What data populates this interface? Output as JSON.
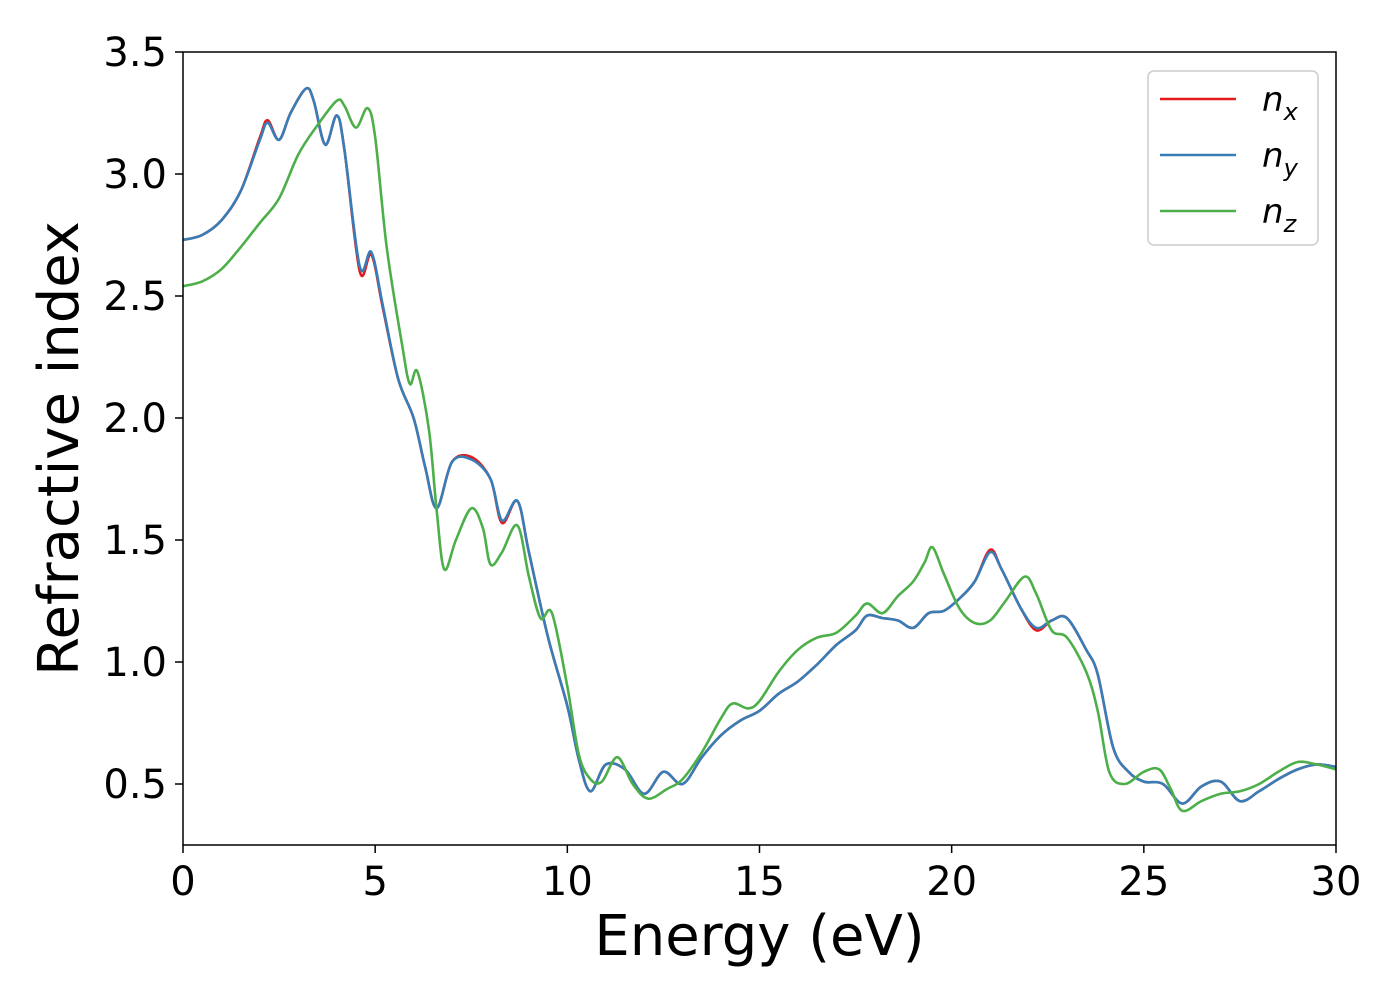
{
  "chart_data": {
    "type": "line",
    "xlabel": "Energy (eV)",
    "ylabel": "Refractive index",
    "xlim": [
      0,
      30
    ],
    "ylim": [
      0.25,
      3.5
    ],
    "xticks": [
      "0",
      "5",
      "10",
      "15",
      "20",
      "25",
      "30"
    ],
    "yticks": [
      "0.5",
      "1.0",
      "1.5",
      "2.0",
      "2.5",
      "3.0",
      "3.5"
    ],
    "grid": false,
    "legend_position": "top-right",
    "series": [
      {
        "name": "n",
        "subscript": "x",
        "color": "#e41a1c",
        "points": [
          [
            0,
            2.73
          ],
          [
            0.5,
            2.75
          ],
          [
            1,
            2.81
          ],
          [
            1.5,
            2.93
          ],
          [
            2,
            3.15
          ],
          [
            2.2,
            3.22
          ],
          [
            2.5,
            3.14
          ],
          [
            2.8,
            3.25
          ],
          [
            3.2,
            3.35
          ],
          [
            3.4,
            3.3
          ],
          [
            3.7,
            3.12
          ],
          [
            4.0,
            3.24
          ],
          [
            4.2,
            3.1
          ],
          [
            4.6,
            2.6
          ],
          [
            4.9,
            2.67
          ],
          [
            5.2,
            2.45
          ],
          [
            5.6,
            2.16
          ],
          [
            6.0,
            2.0
          ],
          [
            6.3,
            1.8
          ],
          [
            6.6,
            1.63
          ],
          [
            7.0,
            1.82
          ],
          [
            7.5,
            1.84
          ],
          [
            8.0,
            1.75
          ],
          [
            8.3,
            1.57
          ],
          [
            8.7,
            1.66
          ],
          [
            9.0,
            1.45
          ],
          [
            9.5,
            1.1
          ],
          [
            10.0,
            0.82
          ],
          [
            10.3,
            0.6
          ],
          [
            10.6,
            0.47
          ],
          [
            11.0,
            0.58
          ],
          [
            11.5,
            0.56
          ],
          [
            12.0,
            0.46
          ],
          [
            12.5,
            0.55
          ],
          [
            13.0,
            0.5
          ],
          [
            13.5,
            0.61
          ],
          [
            14.0,
            0.7
          ],
          [
            14.5,
            0.76
          ],
          [
            15.0,
            0.8
          ],
          [
            15.5,
            0.87
          ],
          [
            16.0,
            0.92
          ],
          [
            16.5,
            0.99
          ],
          [
            17.0,
            1.07
          ],
          [
            17.5,
            1.13
          ],
          [
            17.8,
            1.19
          ],
          [
            18.2,
            1.18
          ],
          [
            18.6,
            1.17
          ],
          [
            19.0,
            1.14
          ],
          [
            19.4,
            1.2
          ],
          [
            19.8,
            1.21
          ],
          [
            20.2,
            1.26
          ],
          [
            20.6,
            1.33
          ],
          [
            21.0,
            1.46
          ],
          [
            21.3,
            1.38
          ],
          [
            21.8,
            1.22
          ],
          [
            22.2,
            1.13
          ],
          [
            22.6,
            1.17
          ],
          [
            23.0,
            1.18
          ],
          [
            23.5,
            1.05
          ],
          [
            23.8,
            0.95
          ],
          [
            24.2,
            0.65
          ],
          [
            24.6,
            0.55
          ],
          [
            25.0,
            0.51
          ],
          [
            25.5,
            0.5
          ],
          [
            26.0,
            0.42
          ],
          [
            26.5,
            0.49
          ],
          [
            27.0,
            0.51
          ],
          [
            27.5,
            0.43
          ],
          [
            28.0,
            0.47
          ],
          [
            28.5,
            0.52
          ],
          [
            29.0,
            0.56
          ],
          [
            29.5,
            0.58
          ],
          [
            30.0,
            0.57
          ]
        ]
      },
      {
        "name": "n",
        "subscript": "y",
        "color": "#377eb8",
        "points": [
          [
            0,
            2.73
          ],
          [
            0.5,
            2.75
          ],
          [
            1,
            2.81
          ],
          [
            1.5,
            2.93
          ],
          [
            2,
            3.14
          ],
          [
            2.2,
            3.21
          ],
          [
            2.5,
            3.14
          ],
          [
            2.8,
            3.25
          ],
          [
            3.2,
            3.35
          ],
          [
            3.4,
            3.3
          ],
          [
            3.7,
            3.12
          ],
          [
            4.0,
            3.24
          ],
          [
            4.2,
            3.1
          ],
          [
            4.6,
            2.62
          ],
          [
            4.9,
            2.68
          ],
          [
            5.2,
            2.46
          ],
          [
            5.6,
            2.16
          ],
          [
            6.0,
            2.0
          ],
          [
            6.3,
            1.8
          ],
          [
            6.6,
            1.63
          ],
          [
            7.0,
            1.82
          ],
          [
            7.5,
            1.83
          ],
          [
            8.0,
            1.75
          ],
          [
            8.3,
            1.58
          ],
          [
            8.7,
            1.66
          ],
          [
            9.0,
            1.45
          ],
          [
            9.5,
            1.1
          ],
          [
            10.0,
            0.82
          ],
          [
            10.3,
            0.6
          ],
          [
            10.6,
            0.47
          ],
          [
            11.0,
            0.58
          ],
          [
            11.5,
            0.56
          ],
          [
            12.0,
            0.46
          ],
          [
            12.5,
            0.55
          ],
          [
            13.0,
            0.5
          ],
          [
            13.5,
            0.61
          ],
          [
            14.0,
            0.7
          ],
          [
            14.5,
            0.76
          ],
          [
            15.0,
            0.8
          ],
          [
            15.5,
            0.87
          ],
          [
            16.0,
            0.92
          ],
          [
            16.5,
            0.99
          ],
          [
            17.0,
            1.07
          ],
          [
            17.5,
            1.13
          ],
          [
            17.8,
            1.19
          ],
          [
            18.2,
            1.18
          ],
          [
            18.6,
            1.17
          ],
          [
            19.0,
            1.14
          ],
          [
            19.4,
            1.2
          ],
          [
            19.8,
            1.21
          ],
          [
            20.2,
            1.26
          ],
          [
            20.6,
            1.33
          ],
          [
            21.0,
            1.45
          ],
          [
            21.3,
            1.38
          ],
          [
            21.8,
            1.22
          ],
          [
            22.2,
            1.14
          ],
          [
            22.6,
            1.17
          ],
          [
            23.0,
            1.18
          ],
          [
            23.5,
            1.05
          ],
          [
            23.8,
            0.95
          ],
          [
            24.2,
            0.65
          ],
          [
            24.6,
            0.55
          ],
          [
            25.0,
            0.51
          ],
          [
            25.5,
            0.5
          ],
          [
            26.0,
            0.42
          ],
          [
            26.5,
            0.49
          ],
          [
            27.0,
            0.51
          ],
          [
            27.5,
            0.43
          ],
          [
            28.0,
            0.47
          ],
          [
            28.5,
            0.52
          ],
          [
            29.0,
            0.56
          ],
          [
            29.5,
            0.58
          ],
          [
            30.0,
            0.57
          ]
        ]
      },
      {
        "name": "n",
        "subscript": "z",
        "color": "#4daf4a",
        "points": [
          [
            0,
            2.54
          ],
          [
            0.5,
            2.56
          ],
          [
            1,
            2.61
          ],
          [
            1.5,
            2.7
          ],
          [
            2,
            2.8
          ],
          [
            2.5,
            2.9
          ],
          [
            3.0,
            3.08
          ],
          [
            3.5,
            3.2
          ],
          [
            4.0,
            3.3
          ],
          [
            4.2,
            3.28
          ],
          [
            4.5,
            3.19
          ],
          [
            4.8,
            3.27
          ],
          [
            5.0,
            3.15
          ],
          [
            5.3,
            2.7
          ],
          [
            5.7,
            2.3
          ],
          [
            5.9,
            2.14
          ],
          [
            6.1,
            2.19
          ],
          [
            6.4,
            1.95
          ],
          [
            6.6,
            1.62
          ],
          [
            6.8,
            1.38
          ],
          [
            7.1,
            1.5
          ],
          [
            7.5,
            1.63
          ],
          [
            7.8,
            1.55
          ],
          [
            8.0,
            1.4
          ],
          [
            8.3,
            1.45
          ],
          [
            8.7,
            1.56
          ],
          [
            9.0,
            1.35
          ],
          [
            9.3,
            1.18
          ],
          [
            9.6,
            1.2
          ],
          [
            10.0,
            0.9
          ],
          [
            10.3,
            0.62
          ],
          [
            10.6,
            0.52
          ],
          [
            10.9,
            0.51
          ],
          [
            11.3,
            0.61
          ],
          [
            11.7,
            0.5
          ],
          [
            12.1,
            0.44
          ],
          [
            12.6,
            0.48
          ],
          [
            13.0,
            0.52
          ],
          [
            13.5,
            0.63
          ],
          [
            14.0,
            0.77
          ],
          [
            14.3,
            0.83
          ],
          [
            14.7,
            0.81
          ],
          [
            15.0,
            0.84
          ],
          [
            15.5,
            0.96
          ],
          [
            16.0,
            1.05
          ],
          [
            16.5,
            1.1
          ],
          [
            17.0,
            1.12
          ],
          [
            17.5,
            1.19
          ],
          [
            17.8,
            1.24
          ],
          [
            18.2,
            1.2
          ],
          [
            18.6,
            1.27
          ],
          [
            19.0,
            1.33
          ],
          [
            19.3,
            1.41
          ],
          [
            19.5,
            1.47
          ],
          [
            19.8,
            1.36
          ],
          [
            20.2,
            1.22
          ],
          [
            20.6,
            1.16
          ],
          [
            21.0,
            1.17
          ],
          [
            21.4,
            1.25
          ],
          [
            21.9,
            1.35
          ],
          [
            22.2,
            1.28
          ],
          [
            22.6,
            1.13
          ],
          [
            23.0,
            1.1
          ],
          [
            23.5,
            0.96
          ],
          [
            23.8,
            0.8
          ],
          [
            24.1,
            0.55
          ],
          [
            24.5,
            0.5
          ],
          [
            25.0,
            0.55
          ],
          [
            25.4,
            0.56
          ],
          [
            25.7,
            0.48
          ],
          [
            26.0,
            0.39
          ],
          [
            26.5,
            0.43
          ],
          [
            27.0,
            0.46
          ],
          [
            27.5,
            0.47
          ],
          [
            28.0,
            0.5
          ],
          [
            28.5,
            0.55
          ],
          [
            29.0,
            0.59
          ],
          [
            29.5,
            0.58
          ],
          [
            30.0,
            0.56
          ]
        ]
      }
    ]
  }
}
